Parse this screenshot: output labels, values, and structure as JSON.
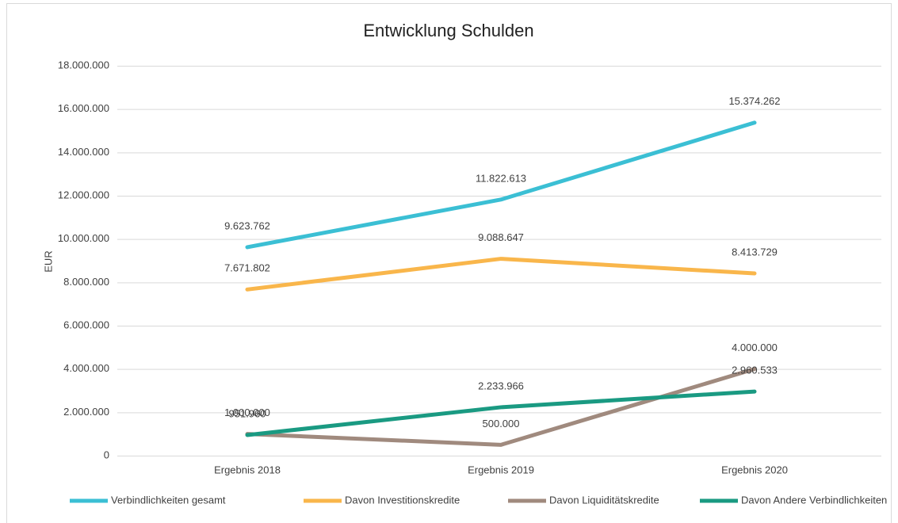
{
  "chart_data": {
    "type": "line",
    "title": "Entwicklung Schulden",
    "y_label": "EUR",
    "categories": [
      "Ergebnis 2018",
      "Ergebnis 2019",
      "Ergebnis 2020"
    ],
    "series": [
      {
        "name": "Verbindlichkeiten gesamt",
        "color": "#3bbfd4",
        "values": [
          9623762,
          11822613,
          15374262
        ],
        "value_labels": [
          "9.623.762",
          "11.822.613",
          "15.374.262"
        ]
      },
      {
        "name": "Davon Investitionskredite",
        "color": "#f9b64b",
        "values": [
          7671802,
          9088647,
          8413729
        ],
        "value_labels": [
          "7.671.802",
          "9.088.647",
          "8.413.729"
        ]
      },
      {
        "name": "Davon Liquiditätskredite",
        "color": "#a08a7e",
        "values": [
          1000000,
          500000,
          4000000
        ],
        "value_labels": [
          "1.000.000",
          "500.000",
          "4.000.000"
        ]
      },
      {
        "name": "Davon Andere Verbindlichkeiten",
        "color": "#1a9a82",
        "values": [
          951960,
          2233966,
          2960533
        ],
        "value_labels": [
          "951.960",
          "2.233.966",
          "2.960.533"
        ]
      }
    ],
    "ylim": [
      0,
      18000000
    ],
    "yticks": [
      0,
      {
        "value": 2000000,
        "label": "2.000.000"
      },
      {
        "value": 4000000,
        "label": "4.000.000"
      },
      {
        "value": 6000000,
        "label": "6.000.000"
      },
      {
        "value": 8000000,
        "label": "8.000.000"
      },
      {
        "value": 10000000,
        "label": "10.000.000"
      },
      {
        "value": 12000000,
        "label": "12.000.000"
      },
      {
        "value": 14000000,
        "label": "14.000.000"
      },
      {
        "value": 16000000,
        "label": "16.000.000"
      },
      {
        "value": 18000000,
        "label": "18.000.000"
      }
    ],
    "grid": true,
    "legend": "bottom"
  }
}
